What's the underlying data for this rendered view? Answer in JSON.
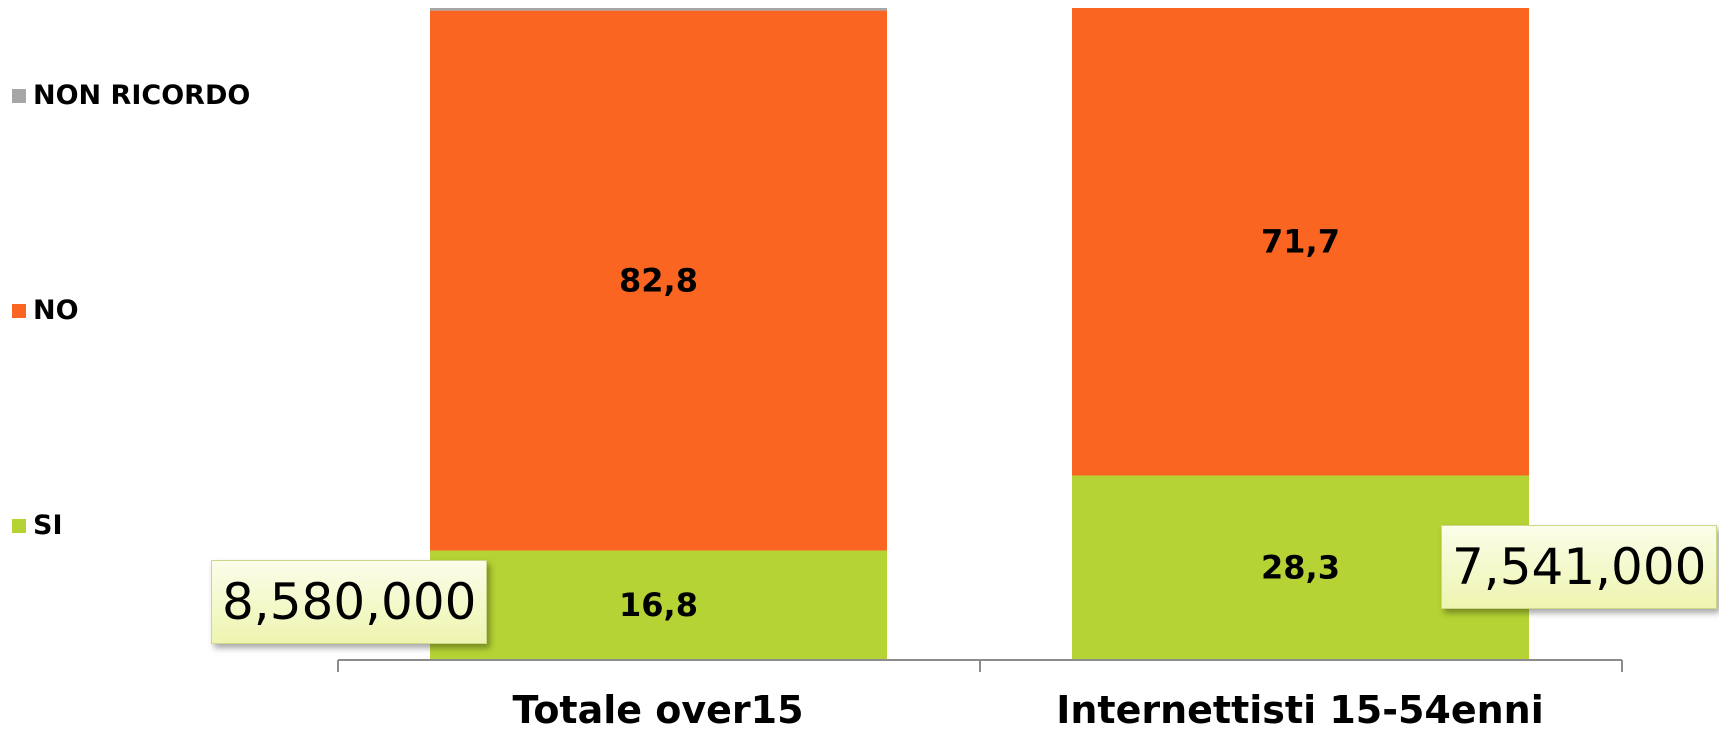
{
  "chart_data": {
    "type": "bar",
    "stacked": true,
    "categories": [
      "Totale over15",
      "Internettisti 15-54enni"
    ],
    "series": [
      {
        "name": "SI",
        "values": [
          16.8,
          28.3
        ],
        "labels": [
          "16,8",
          "28,3"
        ],
        "color": "#b5d334"
      },
      {
        "name": "NO",
        "values": [
          82.8,
          71.7
        ],
        "labels": [
          "82,8",
          "71,7"
        ],
        "color": "#fa6521"
      },
      {
        "name": "NON RICORDO",
        "values": [
          0.4,
          0
        ],
        "labels": [
          "",
          ""
        ],
        "color": "#a6a6a6"
      }
    ],
    "ylim": [
      0,
      100
    ],
    "grid": false,
    "legend_position": "left",
    "callouts": [
      "8,580,000",
      "7,541,000"
    ]
  }
}
